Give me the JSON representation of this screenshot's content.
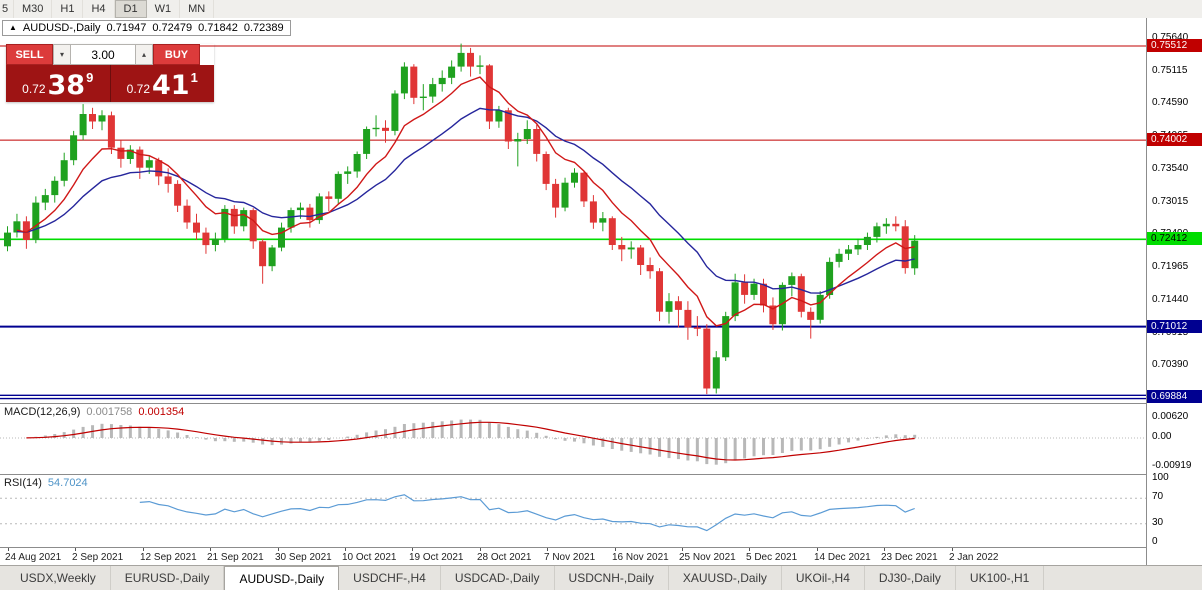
{
  "toolbar": {
    "partial_label": "5",
    "timeframes": [
      "M30",
      "H1",
      "H4",
      "D1",
      "W1",
      "MN"
    ],
    "active": "D1"
  },
  "chart_header": {
    "collapse_icon": "▲",
    "symbol": "AUDUSD-,Daily",
    "open": "0.71947",
    "high": "0.72479",
    "low": "0.71842",
    "close": "0.72389"
  },
  "trade_panel": {
    "sell_label": "SELL",
    "buy_label": "BUY",
    "volume": "3.00",
    "icons": {
      "up": "▴",
      "down": "▾"
    },
    "sell_price": {
      "prefix": "0.72",
      "big": "38",
      "sup": "9"
    },
    "buy_price": {
      "prefix": "0.72",
      "big": "41",
      "sup": "1"
    }
  },
  "price_axis": {
    "ticks": [
      "0.75640",
      "0.75115",
      "0.74590",
      "0.74065",
      "0.73540",
      "0.73015",
      "0.72490",
      "0.71965",
      "0.71440",
      "0.70915",
      "0.70390"
    ],
    "levels": [
      {
        "price": "0.75512",
        "color": "#c00000",
        "fg": "#ffffff",
        "width": 1
      },
      {
        "price": "0.74002",
        "color": "#c00000",
        "fg": "#ffffff",
        "width": 1
      },
      {
        "price": "0.72412",
        "color": "#00dd00",
        "fg": "#000000",
        "width": 1.6
      },
      {
        "price": "0.71012",
        "color": "#000090",
        "fg": "#ffffff",
        "width": 2
      },
      {
        "price": "0.69884",
        "color": "#000090",
        "fg": "#ffffff",
        "width": 1.4,
        "style": "double"
      }
    ]
  },
  "macd": {
    "label": "MACD(12,26,9)",
    "value_main": "0.001758",
    "value_signal": "0.001354",
    "axis": [
      "0.00620",
      "0.00",
      "-0.00919"
    ]
  },
  "rsi": {
    "label": "RSI(14)",
    "value": "54.7024",
    "axis": [
      "100",
      "70",
      "30",
      "0"
    ],
    "levels": [
      70,
      30
    ]
  },
  "colors": {
    "candle_up": "#1fa11f",
    "candle_down": "#e03636",
    "ma_fast": "#d01818",
    "ma_slow": "#26269c",
    "macd_hist": "#b8b8b8",
    "macd_signal": "#c00000",
    "rsi_line": "#5b9bd5",
    "axis_dotted": "#b8b8b8"
  },
  "chart_data": {
    "type": "candlestick",
    "title": "AUDUSD-,Daily",
    "ohlc_current": {
      "open": 0.71947,
      "high": 0.72479,
      "low": 0.71842,
      "close": 0.72389
    },
    "bid": "0.72389",
    "ask": "0.72411",
    "dates_axis": [
      "24 Aug 2021",
      "2 Sep 2021",
      "12 Sep 2021",
      "21 Sep 2021",
      "30 Sep 2021",
      "10 Oct 2021",
      "19 Oct 2021",
      "28 Oct 2021",
      "7 Nov 2021",
      "16 Nov 2021",
      "25 Nov 2021",
      "5 Dec 2021",
      "14 Dec 2021",
      "23 Dec 2021",
      "2 Jan 2022"
    ],
    "candles": [
      [
        0.723,
        0.7262,
        0.7222,
        0.7252
      ],
      [
        0.7252,
        0.7282,
        0.7244,
        0.727
      ],
      [
        0.727,
        0.7278,
        0.7226,
        0.724
      ],
      [
        0.724,
        0.731,
        0.7235,
        0.73
      ],
      [
        0.73,
        0.7322,
        0.7288,
        0.7312
      ],
      [
        0.7312,
        0.7342,
        0.73,
        0.7335
      ],
      [
        0.7335,
        0.738,
        0.7326,
        0.7368
      ],
      [
        0.7368,
        0.7415,
        0.736,
        0.7408
      ],
      [
        0.7408,
        0.7458,
        0.74,
        0.7442
      ],
      [
        0.7442,
        0.7452,
        0.7418,
        0.743
      ],
      [
        0.743,
        0.7448,
        0.7416,
        0.744
      ],
      [
        0.744,
        0.7446,
        0.7378,
        0.7388
      ],
      [
        0.7388,
        0.74,
        0.7356,
        0.737
      ],
      [
        0.737,
        0.7392,
        0.7362,
        0.7385
      ],
      [
        0.7385,
        0.739,
        0.7338,
        0.7356
      ],
      [
        0.7356,
        0.7375,
        0.7346,
        0.7368
      ],
      [
        0.7368,
        0.7372,
        0.7328,
        0.7342
      ],
      [
        0.7342,
        0.7355,
        0.7316,
        0.733
      ],
      [
        0.733,
        0.7336,
        0.7285,
        0.7295
      ],
      [
        0.7295,
        0.7305,
        0.7258,
        0.7268
      ],
      [
        0.7268,
        0.7282,
        0.724,
        0.7252
      ],
      [
        0.7252,
        0.726,
        0.7218,
        0.7232
      ],
      [
        0.7232,
        0.7252,
        0.7222,
        0.7242
      ],
      [
        0.7242,
        0.7296,
        0.7236,
        0.729
      ],
      [
        0.729,
        0.7296,
        0.725,
        0.7262
      ],
      [
        0.7262,
        0.7292,
        0.7254,
        0.7288
      ],
      [
        0.7288,
        0.7291,
        0.7226,
        0.7238
      ],
      [
        0.7238,
        0.7242,
        0.717,
        0.7198
      ],
      [
        0.7198,
        0.7232,
        0.719,
        0.7228
      ],
      [
        0.7228,
        0.7268,
        0.7222,
        0.726
      ],
      [
        0.726,
        0.7292,
        0.7252,
        0.7288
      ],
      [
        0.7288,
        0.73,
        0.7274,
        0.7292
      ],
      [
        0.7292,
        0.7298,
        0.726,
        0.7272
      ],
      [
        0.7272,
        0.7315,
        0.7266,
        0.731
      ],
      [
        0.731,
        0.7318,
        0.7286,
        0.7306
      ],
      [
        0.7306,
        0.735,
        0.7298,
        0.7346
      ],
      [
        0.7346,
        0.7358,
        0.733,
        0.735
      ],
      [
        0.735,
        0.7382,
        0.734,
        0.7378
      ],
      [
        0.7378,
        0.7422,
        0.737,
        0.7418
      ],
      [
        0.7418,
        0.744,
        0.7406,
        0.742
      ],
      [
        0.742,
        0.7432,
        0.7396,
        0.7415
      ],
      [
        0.7415,
        0.748,
        0.7408,
        0.7475
      ],
      [
        0.7475,
        0.7525,
        0.7466,
        0.7518
      ],
      [
        0.7518,
        0.7522,
        0.7458,
        0.7468
      ],
      [
        0.7468,
        0.749,
        0.7448,
        0.747
      ],
      [
        0.747,
        0.75,
        0.746,
        0.749
      ],
      [
        0.749,
        0.7512,
        0.7478,
        0.75
      ],
      [
        0.75,
        0.7528,
        0.749,
        0.7518
      ],
      [
        0.7518,
        0.7555,
        0.751,
        0.754
      ],
      [
        0.754,
        0.7548,
        0.7502,
        0.7518
      ],
      [
        0.7518,
        0.7536,
        0.7506,
        0.752
      ],
      [
        0.752,
        0.7522,
        0.7418,
        0.743
      ],
      [
        0.743,
        0.7455,
        0.742,
        0.7448
      ],
      [
        0.7448,
        0.7452,
        0.7386,
        0.7398
      ],
      [
        0.7398,
        0.7412,
        0.7358,
        0.7402
      ],
      [
        0.7402,
        0.7432,
        0.7394,
        0.7418
      ],
      [
        0.7418,
        0.7425,
        0.7366,
        0.7378
      ],
      [
        0.7378,
        0.7382,
        0.732,
        0.733
      ],
      [
        0.733,
        0.7338,
        0.7276,
        0.7292
      ],
      [
        0.7292,
        0.734,
        0.7286,
        0.7332
      ],
      [
        0.7332,
        0.7355,
        0.7324,
        0.7348
      ],
      [
        0.7348,
        0.735,
        0.7293,
        0.7302
      ],
      [
        0.7302,
        0.7312,
        0.7258,
        0.7268
      ],
      [
        0.7268,
        0.7285,
        0.7254,
        0.7275
      ],
      [
        0.7275,
        0.7278,
        0.7224,
        0.7232
      ],
      [
        0.7232,
        0.7245,
        0.7206,
        0.7225
      ],
      [
        0.7225,
        0.7238,
        0.721,
        0.7228
      ],
      [
        0.7228,
        0.7232,
        0.7184,
        0.72
      ],
      [
        0.72,
        0.7212,
        0.7178,
        0.719
      ],
      [
        0.719,
        0.7195,
        0.711,
        0.7125
      ],
      [
        0.7125,
        0.7155,
        0.7106,
        0.7142
      ],
      [
        0.7142,
        0.715,
        0.71,
        0.7128
      ],
      [
        0.7128,
        0.7142,
        0.708,
        0.71
      ],
      [
        0.71,
        0.7118,
        0.7086,
        0.7098
      ],
      [
        0.7098,
        0.7105,
        0.6993,
        0.7002
      ],
      [
        0.7002,
        0.7062,
        0.6994,
        0.7052
      ],
      [
        0.7052,
        0.7125,
        0.7046,
        0.7118
      ],
      [
        0.7118,
        0.7186,
        0.711,
        0.7172
      ],
      [
        0.7172,
        0.7185,
        0.7138,
        0.7152
      ],
      [
        0.7152,
        0.7178,
        0.7144,
        0.717
      ],
      [
        0.717,
        0.7178,
        0.7124,
        0.7135
      ],
      [
        0.7135,
        0.7148,
        0.7096,
        0.7105
      ],
      [
        0.7105,
        0.7172,
        0.7095,
        0.7168
      ],
      [
        0.7168,
        0.7188,
        0.715,
        0.7182
      ],
      [
        0.7182,
        0.7186,
        0.7116,
        0.7125
      ],
      [
        0.7125,
        0.7132,
        0.7082,
        0.7112
      ],
      [
        0.7112,
        0.7158,
        0.7106,
        0.7152
      ],
      [
        0.7152,
        0.7212,
        0.7146,
        0.7205
      ],
      [
        0.7205,
        0.7226,
        0.7196,
        0.7218
      ],
      [
        0.7218,
        0.7232,
        0.7208,
        0.7225
      ],
      [
        0.7225,
        0.7242,
        0.7216,
        0.7232
      ],
      [
        0.7232,
        0.7252,
        0.7224,
        0.7245
      ],
      [
        0.7245,
        0.7268,
        0.7236,
        0.7262
      ],
      [
        0.7262,
        0.7275,
        0.725,
        0.7266
      ],
      [
        0.7266,
        0.7278,
        0.7254,
        0.7262
      ],
      [
        0.7262,
        0.7272,
        0.7186,
        0.7195
      ],
      [
        0.71947,
        0.72479,
        0.71842,
        0.72389
      ]
    ]
  },
  "tabs": [
    {
      "label": "USDX,Weekly",
      "active": false
    },
    {
      "label": "EURUSD-,Daily",
      "active": false
    },
    {
      "label": "AUDUSD-,Daily",
      "active": true
    },
    {
      "label": "USDCHF-,H4",
      "active": false
    },
    {
      "label": "USDCAD-,Daily",
      "active": false
    },
    {
      "label": "USDCNH-,Daily",
      "active": false
    },
    {
      "label": "XAUUSD-,Daily",
      "active": false
    },
    {
      "label": "UKOil-,H4",
      "active": false
    },
    {
      "label": "DJ30-,Daily",
      "active": false
    },
    {
      "label": "UK100-,H1",
      "active": false
    }
  ]
}
